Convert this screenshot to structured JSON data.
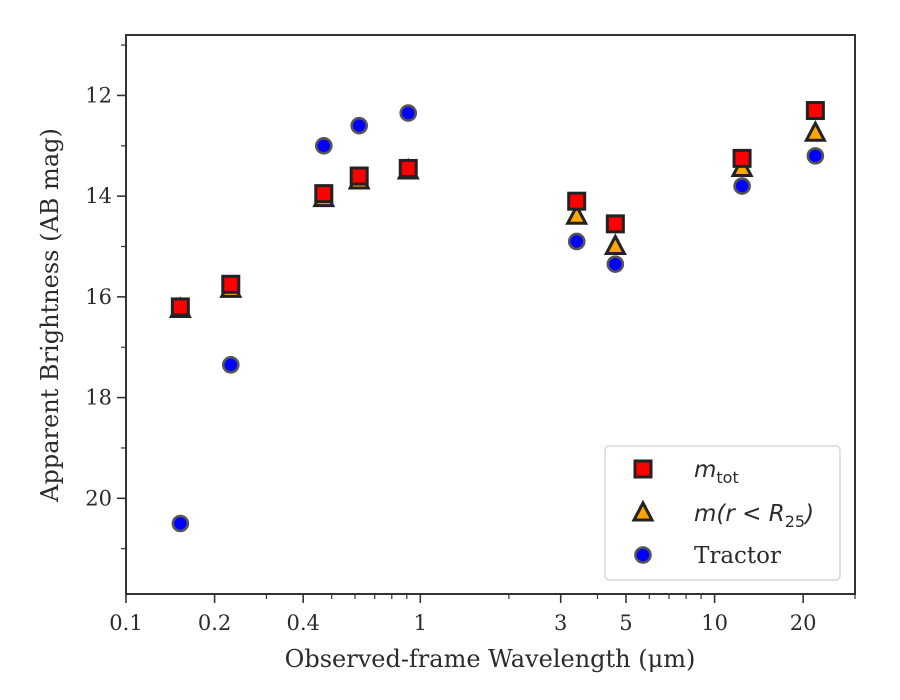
{
  "chart_data": {
    "type": "scatter",
    "title": "",
    "xlabel": "Observed-frame Wavelength (μm)",
    "ylabel": "Apparent Brightness (AB mag)",
    "xscale": "log",
    "yscale": "linear",
    "y_inverted": true,
    "xlim": [
      0.1,
      30
    ],
    "ylim": [
      21.9,
      10.8
    ],
    "x_ticks": [
      0.1,
      0.2,
      0.4,
      1,
      3,
      5,
      10,
      20
    ],
    "x_tick_labels": [
      "0.1",
      "0.2",
      "0.4",
      "1",
      "3",
      "5",
      "10",
      "20"
    ],
    "y_ticks": [
      12,
      14,
      16,
      18,
      20
    ],
    "y_tick_labels": [
      "12",
      "14",
      "16",
      "18",
      "20"
    ],
    "grid": false,
    "legend_position": "lower-right",
    "series": [
      {
        "name": "m_tot",
        "legend": {
          "main": "m",
          "sub": "tot",
          "rest": ""
        },
        "marker": "square",
        "color": "#ff0000",
        "edgecolor": "#222222",
        "errcolor": "#cc0000",
        "x": [
          0.153,
          0.227,
          0.47,
          0.62,
          0.91,
          3.4,
          4.6,
          12.4,
          22.0
        ],
        "y": [
          16.2,
          15.75,
          13.95,
          13.6,
          13.45,
          14.1,
          14.55,
          13.25,
          12.3
        ]
      },
      {
        "name": "m(r < R_25)",
        "legend": {
          "main": "m(r < R",
          "sub": "25",
          "rest": ")"
        },
        "marker": "triangle",
        "color": "#ffa500",
        "edgecolor": "#222222",
        "errcolor": "#e6a800",
        "x": [
          0.153,
          0.227,
          0.47,
          0.62,
          0.91,
          3.4,
          4.6,
          12.4,
          22.0
        ],
        "y": [
          16.25,
          15.85,
          14.05,
          13.7,
          13.5,
          14.4,
          15.0,
          13.45,
          12.75
        ]
      },
      {
        "name": "Tractor",
        "legend": {
          "main": "Tractor",
          "sub": "",
          "rest": ""
        },
        "marker": "circle",
        "color": "#0000ff",
        "edgecolor": "#555555",
        "errcolor": "#1f3fff",
        "x": [
          0.153,
          0.227,
          0.47,
          0.62,
          0.91,
          3.4,
          4.6,
          12.4,
          22.0
        ],
        "y": [
          20.5,
          17.35,
          13.0,
          12.6,
          12.35,
          14.9,
          15.35,
          13.8,
          13.2
        ]
      }
    ]
  }
}
